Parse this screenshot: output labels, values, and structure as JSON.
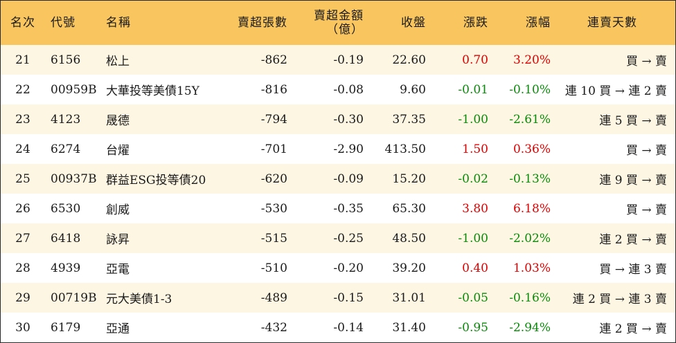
{
  "header": {
    "rank": "名次",
    "code": "代號",
    "name": "名稱",
    "net_sell_lots": "賣超張數",
    "net_sell_amount_line1": "賣超金額",
    "net_sell_amount_line2": "（億）",
    "close": "收盤",
    "change": "漲跌",
    "change_pct": "漲幅",
    "streak": "連賣天數"
  },
  "colors": {
    "header_bg": "#f8c55e",
    "stripe_bg": "#fdf6e3",
    "up": "#e00000",
    "down": "#0a8a0a"
  },
  "rows": [
    {
      "rank": "21",
      "code": "6156",
      "name": "松上",
      "lots": "-862",
      "amount": "-0.19",
      "close": "22.60",
      "change": "0.70",
      "pct": "3.20%",
      "dir": "up",
      "streak": "買 → 賣"
    },
    {
      "rank": "22",
      "code": "00959B",
      "name": "大華投等美債15Y",
      "lots": "-816",
      "amount": "-0.08",
      "close": "9.60",
      "change": "-0.01",
      "pct": "-0.10%",
      "dir": "down",
      "streak": "連 10 買 → 連 2 賣"
    },
    {
      "rank": "23",
      "code": "4123",
      "name": "晟德",
      "lots": "-794",
      "amount": "-0.30",
      "close": "37.35",
      "change": "-1.00",
      "pct": "-2.61%",
      "dir": "down",
      "streak": "連 5 買 → 賣"
    },
    {
      "rank": "24",
      "code": "6274",
      "name": "台燿",
      "lots": "-701",
      "amount": "-2.90",
      "close": "413.50",
      "change": "1.50",
      "pct": "0.36%",
      "dir": "up",
      "streak": "買 → 賣"
    },
    {
      "rank": "25",
      "code": "00937B",
      "name": "群益ESG投等債20",
      "lots": "-620",
      "amount": "-0.09",
      "close": "15.20",
      "change": "-0.02",
      "pct": "-0.13%",
      "dir": "down",
      "streak": "連 9 買 → 賣"
    },
    {
      "rank": "26",
      "code": "6530",
      "name": "創威",
      "lots": "-530",
      "amount": "-0.35",
      "close": "65.30",
      "change": "3.80",
      "pct": "6.18%",
      "dir": "up",
      "streak": "買 → 賣"
    },
    {
      "rank": "27",
      "code": "6418",
      "name": "詠昇",
      "lots": "-515",
      "amount": "-0.25",
      "close": "48.50",
      "change": "-1.00",
      "pct": "-2.02%",
      "dir": "down",
      "streak": "連 2 買 → 賣"
    },
    {
      "rank": "28",
      "code": "4939",
      "name": "亞電",
      "lots": "-510",
      "amount": "-0.20",
      "close": "39.20",
      "change": "0.40",
      "pct": "1.03%",
      "dir": "up",
      "streak": "買 → 連 3 賣"
    },
    {
      "rank": "29",
      "code": "00719B",
      "name": "元大美債1-3",
      "lots": "-489",
      "amount": "-0.15",
      "close": "31.01",
      "change": "-0.05",
      "pct": "-0.16%",
      "dir": "down",
      "streak": "連 2 買 → 連 3 賣"
    },
    {
      "rank": "30",
      "code": "6179",
      "name": "亞通",
      "lots": "-432",
      "amount": "-0.14",
      "close": "31.40",
      "change": "-0.95",
      "pct": "-2.94%",
      "dir": "down",
      "streak": "連 2 買 → 賣"
    }
  ]
}
